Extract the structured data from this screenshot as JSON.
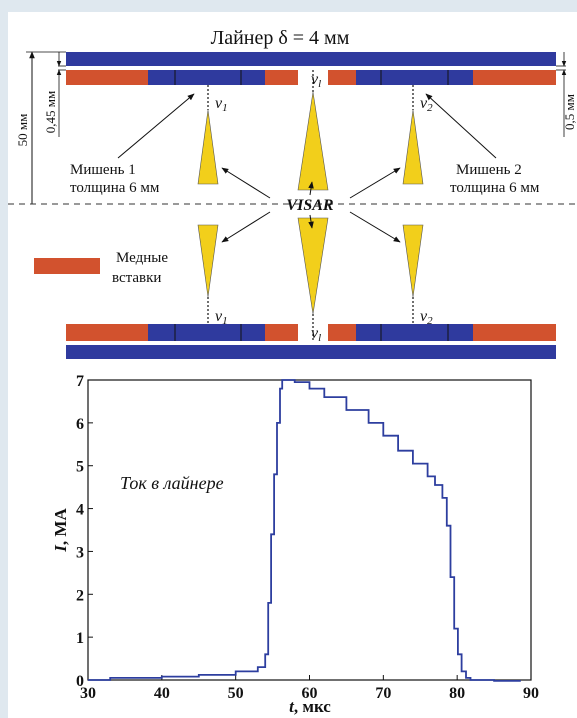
{
  "schematic": {
    "title": "Лайнер δ = 4 мм",
    "dim_height": "50 мм",
    "dim_gap_left": "0,45 мм",
    "dim_gap_right": "0,5 мм",
    "target1": [
      "Мишень 1",
      "толщина 6 мм"
    ],
    "target2": [
      "Мишень  2",
      "толщина 6 мм"
    ],
    "visar": "VISAR",
    "legend_label": [
      "Медные",
      "вставки"
    ],
    "v1": "v",
    "v1_sub": "1",
    "v2": "v",
    "v2_sub": "2",
    "vl": "v",
    "vl_sub": "l",
    "colors": {
      "liner": "#2f3a9e",
      "copper": "#d2522e",
      "target": "#f2cf1b"
    }
  },
  "chart_data": {
    "type": "line",
    "annotation": "Ток в лайнере",
    "xlabel_var": "t",
    "xlabel_unit": ", мкс",
    "ylabel_var": "I",
    "ylabel_unit": ", МА",
    "xlim": [
      30,
      90
    ],
    "ylim": [
      0,
      7
    ],
    "xticks": [
      "30",
      "40",
      "50",
      "60",
      "70",
      "80",
      "90"
    ],
    "yticks": [
      "0",
      "1",
      "2",
      "3",
      "4",
      "5",
      "6",
      "7"
    ],
    "color": "#2d3e9f",
    "series": [
      {
        "x": [
          30,
          33,
          36,
          40,
          45,
          50,
          53,
          54,
          54.4,
          54.8,
          55.2,
          55.6,
          56.0,
          56.3,
          56.7,
          57.2,
          58,
          60,
          62,
          65,
          68,
          70,
          72,
          74,
          76,
          77,
          78,
          78.6,
          79.1,
          79.6,
          80.1,
          80.6,
          81.2,
          81.8,
          82.5,
          83.5,
          85,
          87,
          88.5
        ],
        "y": [
          0.0,
          0.05,
          0.05,
          0.08,
          0.12,
          0.2,
          0.3,
          0.6,
          1.8,
          3.4,
          4.8,
          6.0,
          6.8,
          7.0,
          7.05,
          7.0,
          6.95,
          6.8,
          6.6,
          6.3,
          6.0,
          5.7,
          5.35,
          5.05,
          4.75,
          4.55,
          4.25,
          3.6,
          2.4,
          1.2,
          0.6,
          0.2,
          0.05,
          0.0,
          0.0,
          0.0,
          -0.02,
          -0.02,
          0.0
        ]
      }
    ]
  }
}
